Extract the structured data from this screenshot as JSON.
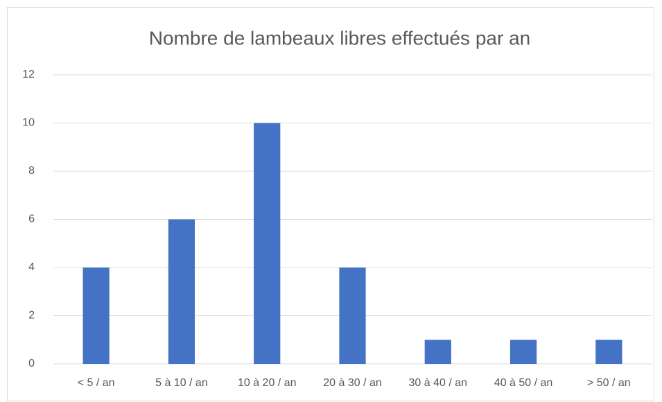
{
  "chart_data": {
    "type": "bar",
    "title": "Nombre de lambeaux libres effectués par an",
    "categories": [
      "< 5 / an",
      "5 à 10 / an",
      "10 à 20 / an",
      "20 à 30 / an",
      "30 à 40 / an",
      "40 à 50 / an",
      "> 50 / an"
    ],
    "values": [
      4,
      6,
      10,
      4,
      1,
      1,
      1
    ],
    "color": "#4472c4",
    "ylim": [
      0,
      12
    ],
    "yticks": [
      0,
      2,
      4,
      6,
      8,
      10,
      12
    ],
    "grid": true
  }
}
